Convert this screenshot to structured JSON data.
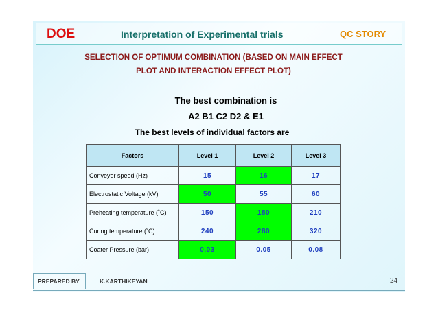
{
  "header": {
    "left": "DOE",
    "title": "Interpretation of Experimental trials",
    "right": "QC STORY"
  },
  "subtitle": [
    "SELECTION OF OPTIMUM COMBINATION (BASED ON MAIN EFFECT",
    "PLOT AND INTERACTION EFFECT PLOT)"
  ],
  "lines": [
    "The best combination is",
    "A2 B1 C2 D2 & E1",
    "The best levels of individual factors are"
  ],
  "table": {
    "columns": [
      "Factors",
      "Level 1",
      "Level 2",
      "Level 3"
    ],
    "rows": [
      [
        "Conveyor speed (Hz)",
        "15",
        "16",
        "17"
      ],
      [
        "Electrostatic Voltage (kV)",
        "50",
        "55",
        "60"
      ],
      [
        "Preheating temperature (˚C)",
        "150",
        "180",
        "210"
      ],
      [
        "Curing temperature (˚C)",
        "240",
        "280",
        "320"
      ],
      [
        "Coater Pressure (bar)",
        "0.03",
        "0.05",
        "0.08"
      ]
    ],
    "highlight": [
      2,
      1,
      2,
      2,
      1
    ],
    "highlight_color": "#00ff00"
  },
  "footer": {
    "label": "PREPARED BY",
    "name": "K.KARTHIKEYAN",
    "page": "24"
  }
}
